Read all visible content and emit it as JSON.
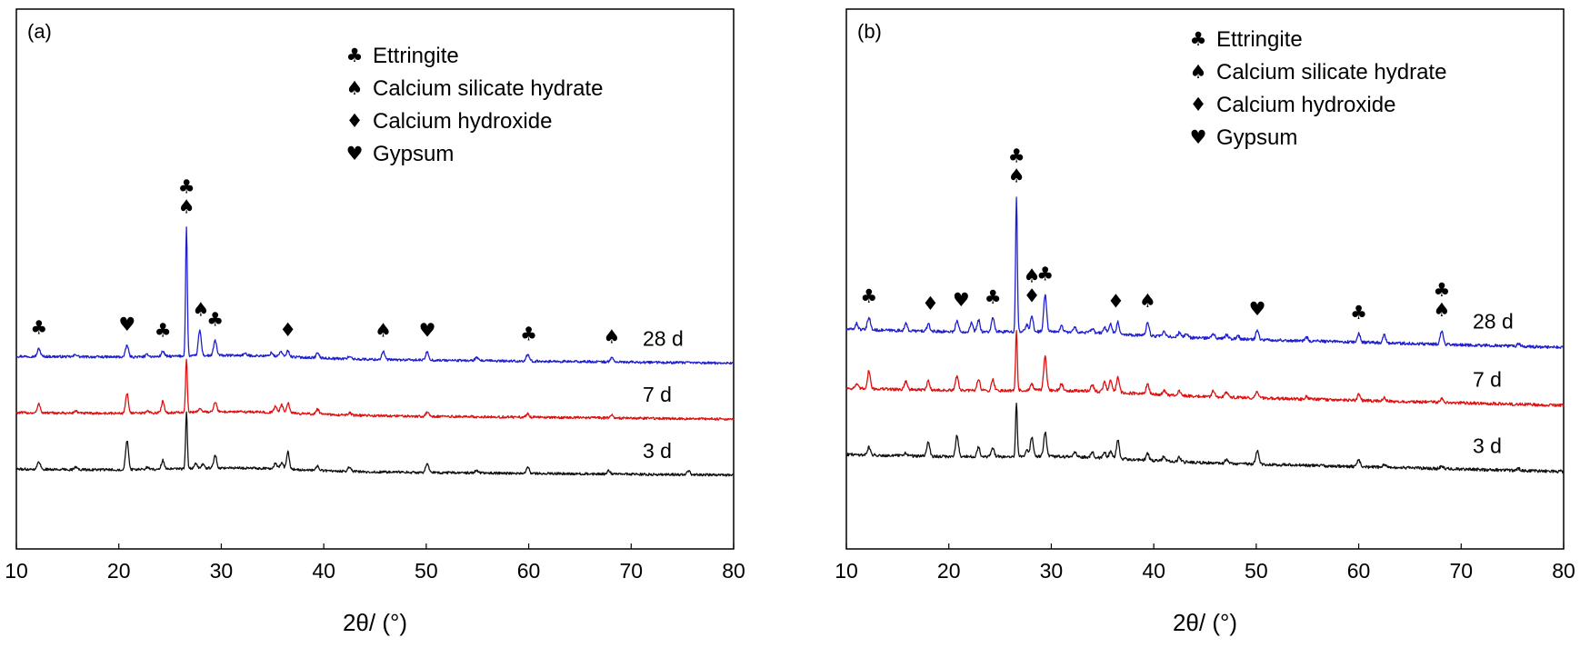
{
  "chart_data": [
    {
      "type": "line",
      "panel_label": "(a)",
      "xlabel": "2θ/ (°)",
      "ylabel": "",
      "xlim": [
        10,
        80
      ],
      "x_ticks": [
        "10",
        "20",
        "30",
        "40",
        "50",
        "60",
        "70",
        "80"
      ],
      "y_ticks": [],
      "legend": [
        {
          "symbol": "♣",
          "label": "Ettringite"
        },
        {
          "symbol": "♠",
          "label": "Calcium silicate hydrate"
        },
        {
          "symbol": "♦",
          "label": "Calcium hydroxide"
        },
        {
          "symbol": "♥",
          "label": "Gypsum"
        }
      ],
      "legend_position": "top-right",
      "series": [
        {
          "name": "28 d",
          "color": "#1f1fd0",
          "baseline": 3.0,
          "baseline_end": 2.86,
          "peaks": [
            [
              12.2,
              0.16
            ],
            [
              15.8,
              0.05
            ],
            [
              20.8,
              0.24
            ],
            [
              22.8,
              0.05
            ],
            [
              24.3,
              0.11
            ],
            [
              26.6,
              2.62
            ],
            [
              27.9,
              0.52
            ],
            [
              29.4,
              0.31
            ],
            [
              32.3,
              0.04
            ],
            [
              34.9,
              0.07
            ],
            [
              35.8,
              0.1
            ],
            [
              36.5,
              0.12
            ],
            [
              39.4,
              0.1
            ],
            [
              42.5,
              0.06
            ],
            [
              45.8,
              0.17
            ],
            [
              50.1,
              0.18
            ],
            [
              54.9,
              0.06
            ],
            [
              59.9,
              0.13
            ],
            [
              68.1,
              0.09
            ]
          ],
          "noise": 0.025
        },
        {
          "name": "7 d",
          "color": "#e01010",
          "baseline": 1.85,
          "baseline_end": 1.72,
          "peaks": [
            [
              12.2,
              0.18
            ],
            [
              15.8,
              0.05
            ],
            [
              20.8,
              0.4
            ],
            [
              22.8,
              0.05
            ],
            [
              24.3,
              0.24
            ],
            [
              26.6,
              1.1
            ],
            [
              27.9,
              0.08
            ],
            [
              29.4,
              0.21
            ],
            [
              35.3,
              0.13
            ],
            [
              35.9,
              0.16
            ],
            [
              36.5,
              0.2
            ],
            [
              39.4,
              0.1
            ],
            [
              42.5,
              0.05
            ],
            [
              50.1,
              0.09
            ],
            [
              59.9,
              0.07
            ],
            [
              68.1,
              0.06
            ]
          ],
          "noise": 0.025
        },
        {
          "name": "3 d",
          "color": "#111111",
          "baseline": 0.7,
          "baseline_end": 0.58,
          "peaks": [
            [
              12.2,
              0.16
            ],
            [
              15.8,
              0.05
            ],
            [
              20.8,
              0.6
            ],
            [
              22.8,
              0.05
            ],
            [
              24.3,
              0.18
            ],
            [
              26.6,
              1.15
            ],
            [
              27.5,
              0.1
            ],
            [
              28.2,
              0.08
            ],
            [
              29.4,
              0.27
            ],
            [
              35.3,
              0.12
            ],
            [
              35.9,
              0.14
            ],
            [
              36.5,
              0.35
            ],
            [
              39.4,
              0.09
            ],
            [
              42.5,
              0.09
            ],
            [
              50.1,
              0.2
            ],
            [
              54.9,
              0.05
            ],
            [
              59.9,
              0.14
            ],
            [
              67.8,
              0.07
            ],
            [
              75.6,
              0.08
            ]
          ],
          "noise": 0.025
        }
      ],
      "markers": [
        {
          "x": 12.2,
          "symbols": [
            "♣"
          ]
        },
        {
          "x": 20.8,
          "symbols": [
            "♥"
          ]
        },
        {
          "x": 24.3,
          "symbols": [
            "♣"
          ]
        },
        {
          "x": 26.6,
          "symbols": [
            "♣",
            "♠"
          ]
        },
        {
          "x": 28.0,
          "symbols": [
            "♠"
          ]
        },
        {
          "x": 29.4,
          "symbols": [
            "♣"
          ]
        },
        {
          "x": 36.5,
          "symbols": [
            "♦"
          ]
        },
        {
          "x": 45.8,
          "symbols": [
            "♠"
          ]
        },
        {
          "x": 50.1,
          "symbols": [
            "♥"
          ]
        },
        {
          "x": 60.0,
          "symbols": [
            "♣"
          ]
        },
        {
          "x": 68.1,
          "symbols": [
            "♠"
          ]
        }
      ]
    },
    {
      "type": "line",
      "panel_label": "(b)",
      "xlabel": "2θ/ (°)",
      "ylabel": "",
      "xlim": [
        10,
        80
      ],
      "x_ticks": [
        "10",
        "20",
        "30",
        "40",
        "50",
        "60",
        "70",
        "80"
      ],
      "y_ticks": [],
      "legend": [
        {
          "symbol": "♣",
          "label": "Ettringite"
        },
        {
          "symbol": "♠",
          "label": "Calcium silicate hydrate"
        },
        {
          "symbol": "♦",
          "label": "Calcium hydroxide"
        },
        {
          "symbol": "♥",
          "label": "Gypsum"
        }
      ],
      "legend_position": "top-right",
      "series": [
        {
          "name": "28 d",
          "color": "#1f1fd0",
          "baseline": 3.55,
          "baseline_end": 3.18,
          "peaks": [
            [
              11.0,
              0.12
            ],
            [
              12.2,
              0.26
            ],
            [
              15.8,
              0.14
            ],
            [
              18.0,
              0.14
            ],
            [
              20.8,
              0.22
            ],
            [
              22.2,
              0.18
            ],
            [
              22.9,
              0.24
            ],
            [
              24.3,
              0.28
            ],
            [
              26.6,
              2.75
            ],
            [
              27.6,
              0.14
            ],
            [
              28.1,
              0.3
            ],
            [
              29.4,
              0.75
            ],
            [
              31.0,
              0.12
            ],
            [
              32.3,
              0.09
            ],
            [
              34.0,
              0.08
            ],
            [
              35.2,
              0.12
            ],
            [
              35.8,
              0.2
            ],
            [
              36.5,
              0.24
            ],
            [
              39.4,
              0.28
            ],
            [
              41.0,
              0.09
            ],
            [
              42.5,
              0.1
            ],
            [
              43.2,
              0.08
            ],
            [
              45.8,
              0.09
            ],
            [
              47.1,
              0.08
            ],
            [
              48.2,
              0.07
            ],
            [
              50.1,
              0.2
            ],
            [
              54.9,
              0.08
            ],
            [
              60.0,
              0.18
            ],
            [
              62.5,
              0.17
            ],
            [
              68.1,
              0.28
            ],
            [
              75.6,
              0.05
            ]
          ],
          "noise": 0.03
        },
        {
          "name": "7 d",
          "color": "#e01010",
          "baseline": 2.35,
          "baseline_end": 2.0,
          "peaks": [
            [
              11.0,
              0.08
            ],
            [
              12.2,
              0.36
            ],
            [
              15.8,
              0.17
            ],
            [
              18.0,
              0.18
            ],
            [
              20.8,
              0.3
            ],
            [
              22.9,
              0.24
            ],
            [
              24.3,
              0.22
            ],
            [
              26.6,
              1.2
            ],
            [
              28.1,
              0.12
            ],
            [
              29.4,
              0.68
            ],
            [
              31.0,
              0.14
            ],
            [
              34.0,
              0.14
            ],
            [
              35.2,
              0.2
            ],
            [
              35.8,
              0.24
            ],
            [
              36.5,
              0.32
            ],
            [
              39.4,
              0.21
            ],
            [
              41.0,
              0.1
            ],
            [
              42.5,
              0.09
            ],
            [
              45.8,
              0.12
            ],
            [
              47.1,
              0.11
            ],
            [
              50.1,
              0.14
            ],
            [
              54.9,
              0.06
            ],
            [
              60.0,
              0.13
            ],
            [
              62.5,
              0.07
            ],
            [
              68.1,
              0.08
            ]
          ],
          "noise": 0.03
        },
        {
          "name": "3 d",
          "color": "#111111",
          "baseline": 1.0,
          "baseline_end": 0.65,
          "peaks": [
            [
              12.2,
              0.16
            ],
            [
              15.8,
              0.06
            ],
            [
              18.0,
              0.3
            ],
            [
              20.8,
              0.44
            ],
            [
              22.9,
              0.2
            ],
            [
              24.3,
              0.18
            ],
            [
              26.6,
              1.1
            ],
            [
              27.6,
              0.14
            ],
            [
              28.1,
              0.4
            ],
            [
              29.4,
              0.5
            ],
            [
              32.3,
              0.1
            ],
            [
              34.0,
              0.12
            ],
            [
              35.2,
              0.12
            ],
            [
              35.8,
              0.16
            ],
            [
              36.5,
              0.38
            ],
            [
              39.4,
              0.14
            ],
            [
              41.0,
              0.1
            ],
            [
              42.5,
              0.1
            ],
            [
              47.1,
              0.08
            ],
            [
              50.1,
              0.28
            ],
            [
              60.0,
              0.14
            ],
            [
              62.5,
              0.07
            ],
            [
              68.1,
              0.06
            ],
            [
              75.6,
              0.04
            ]
          ],
          "noise": 0.03
        }
      ],
      "markers": [
        {
          "x": 12.2,
          "symbols": [
            "♣"
          ]
        },
        {
          "x": 18.2,
          "symbols": [
            "♦"
          ]
        },
        {
          "x": 21.2,
          "symbols": [
            "♥"
          ]
        },
        {
          "x": 24.3,
          "symbols": [
            "♣"
          ]
        },
        {
          "x": 26.6,
          "symbols": [
            "♣",
            "♠"
          ]
        },
        {
          "x": 28.1,
          "symbols": [
            "♠",
            "♦"
          ]
        },
        {
          "x": 29.4,
          "symbols": [
            "♣"
          ]
        },
        {
          "x": 36.3,
          "symbols": [
            "♦"
          ]
        },
        {
          "x": 39.4,
          "symbols": [
            "♠"
          ]
        },
        {
          "x": 50.1,
          "symbols": [
            "♥"
          ]
        },
        {
          "x": 60.0,
          "symbols": [
            "♣"
          ]
        },
        {
          "x": 68.1,
          "symbols": [
            "♣",
            "♠"
          ]
        }
      ]
    }
  ]
}
